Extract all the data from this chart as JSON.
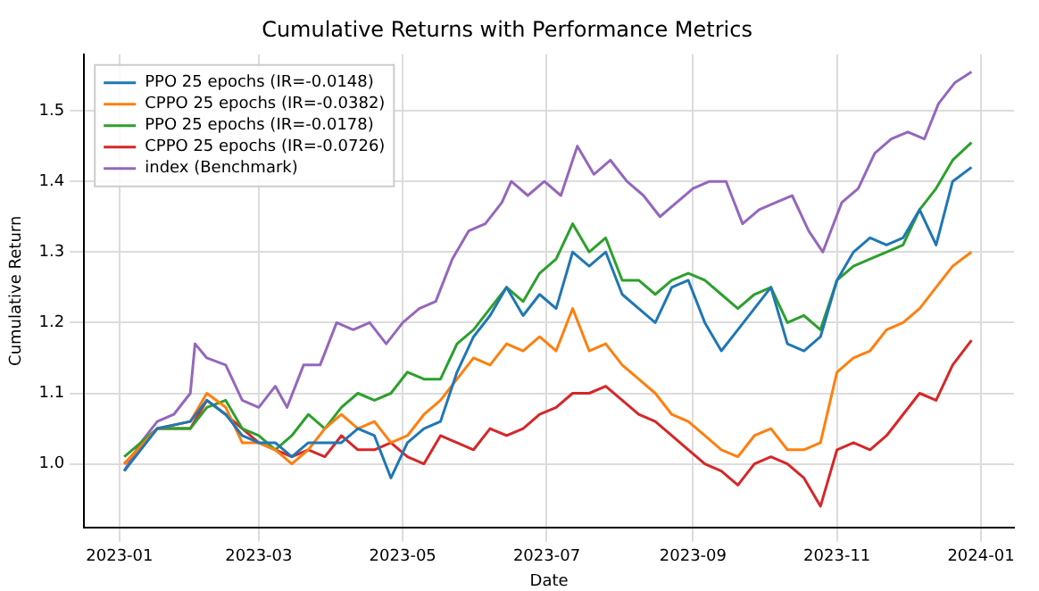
{
  "chart_data": {
    "type": "line",
    "title": "Cumulative Returns with Performance Metrics",
    "xlabel": "Date",
    "ylabel": "Cumulative Return",
    "x": [
      "2023-01-03",
      "2023-01-17",
      "2023-01-31",
      "2023-02-07",
      "2023-02-15",
      "2023-02-22",
      "2023-03-01",
      "2023-03-08",
      "2023-03-15",
      "2023-03-22",
      "2023-03-29",
      "2023-04-05",
      "2023-04-12",
      "2023-04-19",
      "2023-04-26",
      "2023-05-03",
      "2023-05-10",
      "2023-05-17",
      "2023-05-24",
      "2023-05-31",
      "2023-06-07",
      "2023-06-14",
      "2023-06-21",
      "2023-06-28",
      "2023-07-05",
      "2023-07-12",
      "2023-07-19",
      "2023-07-26",
      "2023-08-02",
      "2023-08-09",
      "2023-08-16",
      "2023-08-23",
      "2023-08-30",
      "2023-09-06",
      "2023-09-13",
      "2023-09-20",
      "2023-09-27",
      "2023-10-04",
      "2023-10-11",
      "2023-10-18",
      "2023-10-25",
      "2023-11-01",
      "2023-11-08",
      "2023-11-15",
      "2023-11-22",
      "2023-11-29",
      "2023-12-06",
      "2023-12-13",
      "2023-12-20",
      "2023-12-28"
    ],
    "series": [
      {
        "name": "PPO 25 epochs (IR=-0.0148)",
        "color": "#1f77b4",
        "values": [
          0.99,
          1.05,
          1.06,
          1.09,
          1.07,
          1.04,
          1.03,
          1.03,
          1.01,
          1.03,
          1.03,
          1.03,
          1.05,
          1.04,
          0.98,
          1.03,
          1.05,
          1.06,
          1.13,
          1.18,
          1.21,
          1.25,
          1.21,
          1.24,
          1.22,
          1.3,
          1.28,
          1.3,
          1.24,
          1.22,
          1.2,
          1.25,
          1.26,
          1.2,
          1.16,
          1.19,
          1.22,
          1.25,
          1.17,
          1.16,
          1.18,
          1.26,
          1.3,
          1.32,
          1.31,
          1.32,
          1.36,
          1.31,
          1.4,
          1.42
        ]
      },
      {
        "name": "CPPO 25 epochs (IR=-0.0382)",
        "color": "#ff7f0e",
        "values": [
          1.0,
          1.05,
          1.06,
          1.1,
          1.08,
          1.03,
          1.03,
          1.02,
          1.0,
          1.02,
          1.05,
          1.07,
          1.05,
          1.06,
          1.03,
          1.04,
          1.07,
          1.09,
          1.12,
          1.15,
          1.14,
          1.17,
          1.16,
          1.18,
          1.16,
          1.22,
          1.16,
          1.17,
          1.14,
          1.12,
          1.1,
          1.07,
          1.06,
          1.04,
          1.02,
          1.01,
          1.04,
          1.05,
          1.02,
          1.02,
          1.03,
          1.13,
          1.15,
          1.16,
          1.19,
          1.2,
          1.22,
          1.25,
          1.28,
          1.3
        ]
      },
      {
        "name": "PPO 25 epochs (IR=-0.0178)",
        "color": "#2ca02c",
        "values": [
          1.01,
          1.05,
          1.05,
          1.08,
          1.09,
          1.05,
          1.04,
          1.02,
          1.04,
          1.07,
          1.05,
          1.08,
          1.1,
          1.09,
          1.1,
          1.13,
          1.12,
          1.12,
          1.17,
          1.19,
          1.22,
          1.25,
          1.23,
          1.27,
          1.29,
          1.34,
          1.3,
          1.32,
          1.26,
          1.26,
          1.24,
          1.26,
          1.27,
          1.26,
          1.24,
          1.22,
          1.24,
          1.25,
          1.2,
          1.21,
          1.19,
          1.26,
          1.28,
          1.29,
          1.3,
          1.31,
          1.36,
          1.39,
          1.43,
          1.455
        ]
      },
      {
        "name": "CPPO 25 epochs (IR=-0.0726)",
        "color": "#d62728",
        "values": [
          1.0,
          1.05,
          1.05,
          1.09,
          1.07,
          1.05,
          1.03,
          1.02,
          1.01,
          1.02,
          1.01,
          1.04,
          1.02,
          1.02,
          1.03,
          1.01,
          1.0,
          1.04,
          1.03,
          1.02,
          1.05,
          1.04,
          1.05,
          1.07,
          1.08,
          1.1,
          1.1,
          1.11,
          1.09,
          1.07,
          1.06,
          1.04,
          1.02,
          1.0,
          0.99,
          0.97,
          1.0,
          1.01,
          1.0,
          0.98,
          0.94,
          1.02,
          1.03,
          1.02,
          1.04,
          1.07,
          1.1,
          1.09,
          1.14,
          1.175
        ]
      },
      {
        "name": "index (Benchmark)",
        "color": "#9467bd",
        "x": [
          "2023-01-03",
          "2023-01-10",
          "2023-01-17",
          "2023-01-24",
          "2023-01-31",
          "2023-02-02",
          "2023-02-07",
          "2023-02-15",
          "2023-02-22",
          "2023-03-01",
          "2023-03-08",
          "2023-03-13",
          "2023-03-20",
          "2023-03-27",
          "2023-04-03",
          "2023-04-10",
          "2023-04-17",
          "2023-04-24",
          "2023-05-01",
          "2023-05-08",
          "2023-05-15",
          "2023-05-22",
          "2023-05-29",
          "2023-06-05",
          "2023-06-12",
          "2023-06-16",
          "2023-06-23",
          "2023-06-30",
          "2023-07-07",
          "2023-07-14",
          "2023-07-21",
          "2023-07-28",
          "2023-08-04",
          "2023-08-11",
          "2023-08-18",
          "2023-08-25",
          "2023-09-01",
          "2023-09-08",
          "2023-09-15",
          "2023-09-22",
          "2023-09-29",
          "2023-10-06",
          "2023-10-13",
          "2023-10-20",
          "2023-10-26",
          "2023-11-03",
          "2023-11-10",
          "2023-11-17",
          "2023-11-24",
          "2023-12-01",
          "2023-12-08",
          "2023-12-14",
          "2023-12-21",
          "2023-12-28"
        ],
        "values": [
          0.99,
          1.03,
          1.06,
          1.07,
          1.1,
          1.17,
          1.15,
          1.14,
          1.09,
          1.08,
          1.11,
          1.08,
          1.14,
          1.14,
          1.2,
          1.19,
          1.2,
          1.17,
          1.2,
          1.22,
          1.23,
          1.29,
          1.33,
          1.34,
          1.37,
          1.4,
          1.38,
          1.4,
          1.38,
          1.45,
          1.41,
          1.43,
          1.4,
          1.38,
          1.35,
          1.37,
          1.39,
          1.4,
          1.4,
          1.34,
          1.36,
          1.37,
          1.38,
          1.33,
          1.3,
          1.37,
          1.39,
          1.44,
          1.46,
          1.47,
          1.46,
          1.51,
          1.54,
          1.555
        ]
      }
    ],
    "xlim": [
      "2022-12-17",
      "2024-01-15"
    ],
    "xticks": [
      "2023-01",
      "2023-03",
      "2023-05",
      "2023-07",
      "2023-09",
      "2023-11",
      "2024-01"
    ],
    "ylim": [
      0.91,
      1.58
    ],
    "yticks": [
      {
        "value": 1.0,
        "label": "1.0"
      },
      {
        "value": 1.1,
        "label": "1.1"
      },
      {
        "value": 1.2,
        "label": "1.2"
      },
      {
        "value": 1.3,
        "label": "1.3"
      },
      {
        "value": 1.4,
        "label": "1.4"
      },
      {
        "value": 1.5,
        "label": "1.5"
      }
    ],
    "grid": true,
    "legend": "top left",
    "marker": "none",
    "line_style": "solid"
  }
}
